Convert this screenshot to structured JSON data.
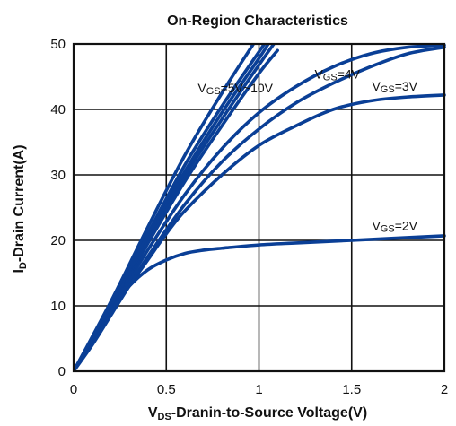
{
  "chart_data": {
    "type": "line",
    "title": "On-Region Characteristics",
    "xlabel": {
      "main": "V",
      "sub": "DS",
      "rest": "-Dranin-to-Source Voltage(V)"
    },
    "ylabel": {
      "main": "I",
      "sub": "D",
      "rest": "-Drain Current(A)"
    },
    "xlim": [
      0,
      2
    ],
    "ylim": [
      0,
      50
    ],
    "xticks": [
      0,
      0.5,
      1,
      1.5,
      2
    ],
    "xtick_labels": [
      "0",
      "0.5",
      "1",
      "1.5",
      "2"
    ],
    "yticks": [
      0,
      10,
      20,
      30,
      40,
      50
    ],
    "ytick_labels": [
      "0",
      "10",
      "20",
      "30",
      "40",
      "50"
    ],
    "grid": true,
    "line_color": "#0a3f96",
    "series": [
      {
        "id": "vgs2",
        "x": [
          0,
          0.1,
          0.2,
          0.3,
          0.4,
          0.5,
          0.6,
          0.7,
          0.8,
          1.0,
          1.2,
          1.5,
          2.0
        ],
        "y": [
          0,
          5,
          9.5,
          13,
          15.5,
          17,
          18,
          18.5,
          18.8,
          19.3,
          19.6,
          20,
          20.7
        ]
      },
      {
        "id": "vgs3",
        "x": [
          0,
          0.1,
          0.2,
          0.3,
          0.4,
          0.5,
          0.6,
          0.8,
          1.0,
          1.2,
          1.4,
          1.6,
          1.8,
          2.0
        ],
        "y": [
          0,
          4,
          8.5,
          13,
          17,
          21,
          24.5,
          30,
          34.5,
          37.5,
          40,
          41.3,
          41.9,
          42.2
        ]
      },
      {
        "id": "vgs4a",
        "x": [
          0,
          0.2,
          0.4,
          0.6,
          0.8,
          1.0,
          1.2,
          1.4,
          1.6,
          1.8,
          2.0
        ],
        "y": [
          0,
          8.8,
          17.5,
          25.5,
          32,
          37,
          41,
          44,
          46.5,
          48.5,
          49.5
        ]
      },
      {
        "id": "vgs4b",
        "x": [
          0,
          0.2,
          0.4,
          0.6,
          0.8,
          1.0,
          1.2,
          1.4,
          1.6,
          1.8,
          2.0
        ],
        "y": [
          0,
          9.2,
          18.5,
          27,
          34,
          39.5,
          43.5,
          46.5,
          48.5,
          49.5,
          49.8
        ]
      },
      {
        "id": "vgs5",
        "x": [
          0,
          0.2,
          0.4,
          0.6,
          0.8,
          1.0,
          1.1
        ],
        "y": [
          0,
          9.5,
          19.5,
          29,
          37.5,
          45.5,
          49
        ]
      },
      {
        "id": "vgs6",
        "x": [
          0,
          0.2,
          0.4,
          0.6,
          0.8,
          1.0,
          1.08
        ],
        "y": [
          0,
          9.8,
          20,
          29.8,
          38.5,
          46.8,
          50
        ]
      },
      {
        "id": "vgs7",
        "x": [
          0,
          0.2,
          0.4,
          0.6,
          0.8,
          1.0,
          1.05
        ],
        "y": [
          0,
          10,
          20.5,
          30.5,
          39.5,
          47.8,
          50
        ]
      },
      {
        "id": "vgs8",
        "x": [
          0,
          0.2,
          0.4,
          0.6,
          0.8,
          1.0,
          1.03
        ],
        "y": [
          0,
          10.2,
          21,
          31.5,
          40.5,
          48.8,
          50
        ]
      },
      {
        "id": "vgs10",
        "x": [
          0,
          0.2,
          0.4,
          0.6,
          0.8,
          0.97
        ],
        "y": [
          0,
          10.6,
          22,
          33,
          42.5,
          50
        ]
      }
    ],
    "series_labels": [
      {
        "main": "V",
        "sub": "GS",
        "rest": "=5V~10V",
        "at": [
          0.67,
          42.6
        ]
      },
      {
        "main": "V",
        "sub": "GS",
        "rest": "=4V",
        "at": [
          1.3,
          44.7
        ]
      },
      {
        "main": "V",
        "sub": "GS",
        "rest": "=3V",
        "at": [
          1.61,
          42.9
        ]
      },
      {
        "main": "V",
        "sub": "GS",
        "rest": "=2V",
        "at": [
          1.61,
          21.6
        ]
      }
    ]
  }
}
